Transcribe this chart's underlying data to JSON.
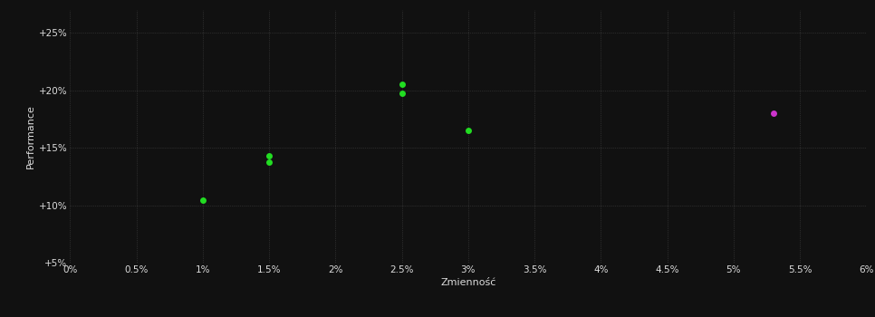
{
  "green_points": [
    [
      0.01,
      0.105
    ],
    [
      0.015,
      0.138
    ],
    [
      0.015,
      0.143
    ],
    [
      0.025,
      0.205
    ],
    [
      0.025,
      0.197
    ],
    [
      0.03,
      0.165
    ]
  ],
  "magenta_points": [
    [
      0.053,
      0.18
    ]
  ],
  "xlim": [
    0.0,
    0.06
  ],
  "ylim": [
    0.05,
    0.27
  ],
  "xticks": [
    0.0,
    0.005,
    0.01,
    0.015,
    0.02,
    0.025,
    0.03,
    0.035,
    0.04,
    0.045,
    0.05,
    0.055,
    0.06
  ],
  "yticks": [
    0.05,
    0.1,
    0.15,
    0.2,
    0.25
  ],
  "xlabel": "Zmienność",
  "ylabel": "Performance",
  "background_color": "#111111",
  "plot_bg_color": "#111111",
  "grid_color": "#444444",
  "text_color": "#dddddd",
  "green_color": "#22dd22",
  "magenta_color": "#cc33cc",
  "marker_size": 25
}
